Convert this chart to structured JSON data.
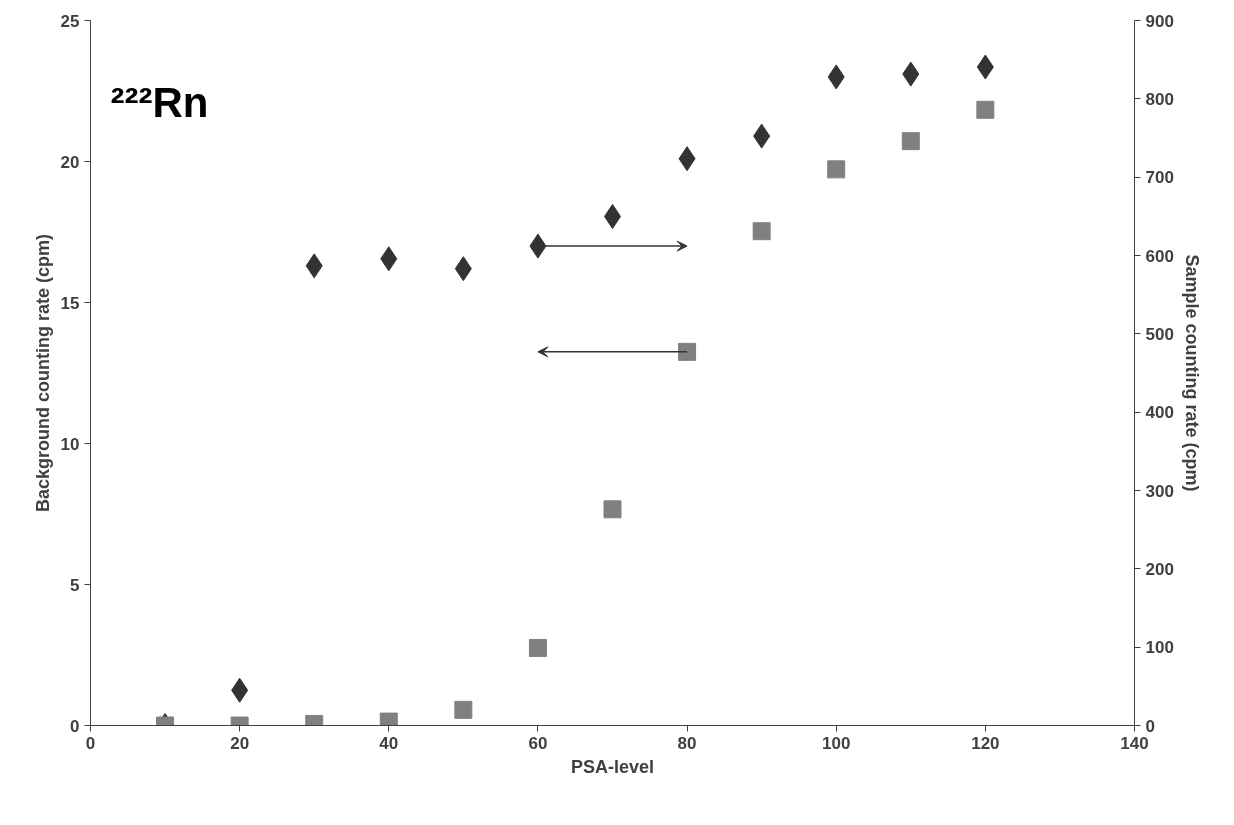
{
  "chart_data": {
    "type": "scatter",
    "xlabel": "PSA-level",
    "ylabel": "Background counting rate (cpm)",
    "y2label": "Sample counting rate (cpm)",
    "annotations": [
      "²²²Rn"
    ],
    "x": [
      10,
      20,
      30,
      40,
      50,
      60,
      70,
      80,
      90,
      100,
      110,
      120
    ],
    "series": [
      {
        "color": "#333333",
        "marker": "diamond",
        "values": [
          0,
          1.25,
          16.3,
          16.55,
          16.2,
          17.0,
          18.05,
          20.1,
          20.9,
          23.0,
          23.1,
          23.35
        ]
      },
      {
        "color": "#808080",
        "marker": "square",
        "axis": "y2",
        "values": [
          0,
          0,
          2,
          5,
          20,
          99,
          276,
          477,
          631,
          710,
          746,
          786
        ]
      }
    ],
    "xlim": [
      0,
      140
    ],
    "xticks": [
      0,
      20,
      40,
      60,
      80,
      100,
      120,
      140
    ],
    "ylim": [
      0,
      25
    ],
    "yticks": [
      0,
      5,
      10,
      15,
      20,
      25
    ],
    "y2lim": [
      0,
      900
    ],
    "y2ticks": [
      0,
      100,
      200,
      300,
      400,
      500,
      600,
      700,
      800,
      900
    ],
    "grid": false
  }
}
